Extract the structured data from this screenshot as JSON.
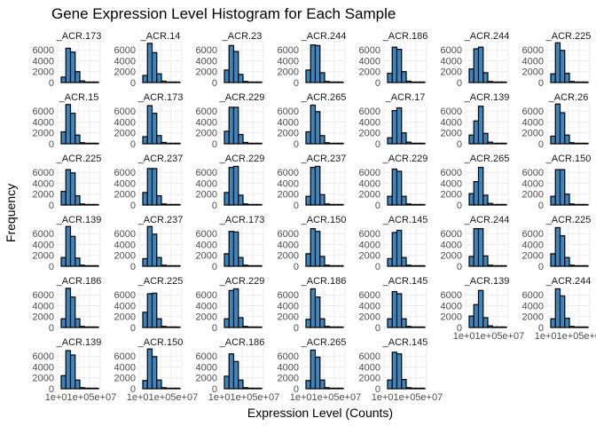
{
  "chart_data": {
    "type": "bar",
    "title": "Gene Expression Level Histogram for Each Sample",
    "xlabel": "Expression Level (Counts)",
    "ylabel": "Frequency",
    "ylim": [
      0,
      7500
    ],
    "y_ticks": [
      0,
      2000,
      4000,
      6000
    ],
    "x_tick_label": "1e+01e+05e+07",
    "grid": true,
    "bins": 8,
    "panels": [
      {
        "label": "_ACR.173",
        "values": [
          1000,
          6300,
          5600,
          2000,
          300,
          100,
          50,
          20
        ]
      },
      {
        "label": "_ACR.14",
        "values": [
          1300,
          7200,
          5500,
          1600,
          250,
          80,
          40,
          10
        ]
      },
      {
        "label": "_ACR.23",
        "values": [
          2300,
          6800,
          5700,
          1500,
          200,
          80,
          30,
          10
        ]
      },
      {
        "label": "_ACR.244",
        "values": [
          2300,
          6900,
          6800,
          1800,
          200,
          80,
          40,
          10
        ]
      },
      {
        "label": "_ACR.186",
        "values": [
          1700,
          6500,
          6100,
          2000,
          250,
          80,
          40,
          10
        ]
      },
      {
        "label": "_ACR.244",
        "values": [
          2500,
          6200,
          6500,
          1800,
          200,
          80,
          40,
          10
        ]
      },
      {
        "label": "_ACR.225",
        "values": [
          1600,
          7300,
          5900,
          1700,
          200,
          80,
          40,
          10
        ]
      },
      {
        "label": "_ACR.15",
        "values": [
          2200,
          7200,
          5600,
          1600,
          200,
          80,
          30,
          10
        ]
      },
      {
        "label": "_ACR.173",
        "values": [
          1300,
          7000,
          5600,
          1500,
          250,
          100,
          40,
          10
        ]
      },
      {
        "label": "_ACR.229",
        "values": [
          2300,
          6700,
          6700,
          1700,
          250,
          80,
          40,
          10
        ]
      },
      {
        "label": "_ACR.265",
        "values": [
          2200,
          7100,
          5900,
          1500,
          200,
          80,
          40,
          10
        ]
      },
      {
        "label": "_ACR.17",
        "values": [
          1100,
          6100,
          6600,
          2000,
          300,
          80,
          40,
          10
        ]
      },
      {
        "label": "_ACR.139",
        "values": [
          1600,
          4200,
          6900,
          1900,
          300,
          100,
          40,
          10
        ]
      },
      {
        "label": "_ACR.26",
        "values": [
          1400,
          7300,
          5700,
          1600,
          200,
          80,
          40,
          10
        ]
      },
      {
        "label": "_ACR.225",
        "values": [
          2500,
          6500,
          5900,
          1700,
          200,
          80,
          40,
          10
        ]
      },
      {
        "label": "_ACR.237",
        "values": [
          2300,
          6700,
          6700,
          1700,
          200,
          80,
          40,
          10
        ]
      },
      {
        "label": "_ACR.229",
        "values": [
          2300,
          6900,
          7100,
          1800,
          200,
          80,
          40,
          10
        ]
      },
      {
        "label": "_ACR.237",
        "values": [
          1600,
          6900,
          7100,
          1900,
          200,
          80,
          40,
          10
        ]
      },
      {
        "label": "_ACR.229",
        "values": [
          1600,
          6600,
          6200,
          1600,
          200,
          80,
          40,
          10
        ]
      },
      {
        "label": "_ACR.265",
        "values": [
          2100,
          4300,
          6900,
          1800,
          300,
          100,
          40,
          10
        ]
      },
      {
        "label": "_ACR.150",
        "values": [
          1600,
          6500,
          6500,
          2000,
          200,
          80,
          40,
          10
        ]
      },
      {
        "label": "_ACR.139",
        "values": [
          1600,
          7300,
          5500,
          1500,
          200,
          80,
          30,
          10
        ]
      },
      {
        "label": "_ACR.237",
        "values": [
          1400,
          7300,
          5900,
          1600,
          200,
          80,
          40,
          10
        ]
      },
      {
        "label": "_ACR.173",
        "values": [
          2300,
          6400,
          6300,
          1600,
          200,
          80,
          40,
          10
        ]
      },
      {
        "label": "_ACR.150",
        "values": [
          2300,
          6900,
          6400,
          1800,
          200,
          80,
          40,
          10
        ]
      },
      {
        "label": "_ACR.145",
        "values": [
          1400,
          6200,
          6600,
          1600,
          200,
          80,
          40,
          10
        ]
      },
      {
        "label": "_ACR.244",
        "values": [
          1800,
          6900,
          6900,
          1900,
          200,
          80,
          40,
          10
        ]
      },
      {
        "label": "_ACR.225",
        "values": [
          2300,
          7100,
          5600,
          1600,
          200,
          80,
          40,
          10
        ]
      },
      {
        "label": "_ACR.186",
        "values": [
          1600,
          7200,
          5600,
          1600,
          200,
          80,
          30,
          10
        ]
      },
      {
        "label": "_ACR.225",
        "values": [
          2800,
          6200,
          6300,
          1600,
          200,
          80,
          40,
          10
        ]
      },
      {
        "label": "_ACR.229",
        "values": [
          1600,
          6800,
          7100,
          1800,
          200,
          80,
          40,
          10
        ]
      },
      {
        "label": "_ACR.186",
        "values": [
          1500,
          7100,
          5600,
          1600,
          200,
          80,
          40,
          10
        ]
      },
      {
        "label": "_ACR.145",
        "values": [
          1600,
          6600,
          6200,
          1600,
          200,
          80,
          40,
          10
        ]
      },
      {
        "label": "_ACR.139",
        "values": [
          2100,
          4200,
          6800,
          1800,
          300,
          100,
          40,
          10
        ]
      },
      {
        "label": "_ACR.244",
        "values": [
          1600,
          7100,
          5800,
          1700,
          200,
          80,
          40,
          10
        ]
      },
      {
        "label": "_ACR.139",
        "values": [
          2400,
          7000,
          6200,
          1600,
          200,
          80,
          40,
          10
        ]
      },
      {
        "label": "_ACR.150",
        "values": [
          1500,
          7300,
          5900,
          1600,
          200,
          80,
          30,
          10
        ]
      },
      {
        "label": "_ACR.186",
        "values": [
          2300,
          6400,
          5000,
          1600,
          200,
          80,
          40,
          10
        ]
      },
      {
        "label": "_ACR.265",
        "values": [
          1500,
          7100,
          5800,
          1600,
          200,
          80,
          40,
          10
        ]
      },
      {
        "label": "_ACR.145",
        "values": [
          1600,
          6700,
          6400,
          1700,
          200,
          80,
          40,
          10
        ]
      }
    ]
  }
}
